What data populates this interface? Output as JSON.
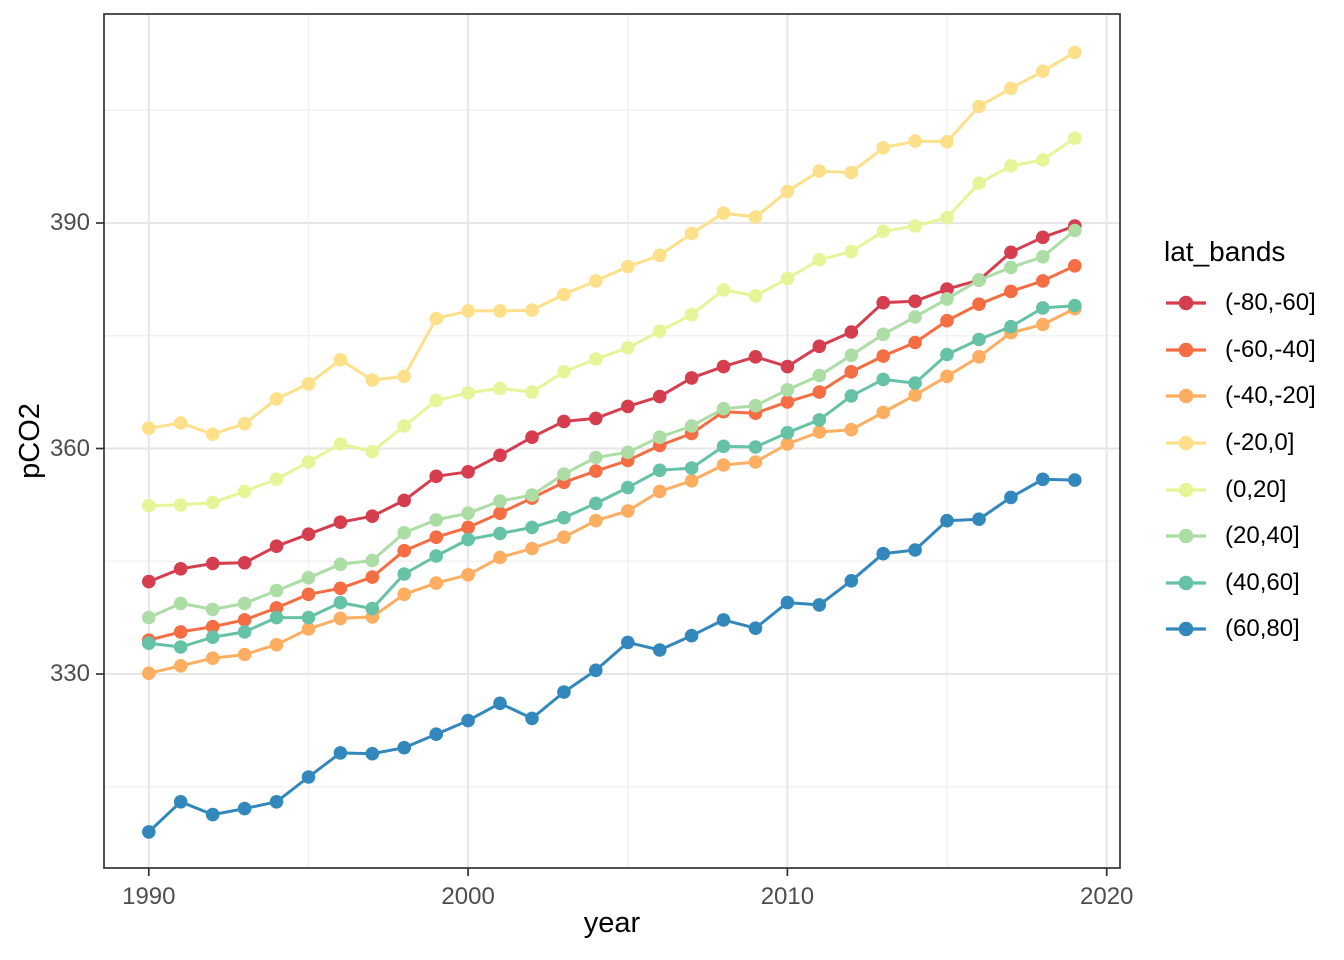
{
  "chart_data": {
    "type": "line",
    "title": "",
    "xlabel": "year",
    "ylabel": "pCO2",
    "legend_title": "lat_bands",
    "legend_position": "right",
    "grid": true,
    "x": [
      1990,
      1991,
      1992,
      1993,
      1994,
      1995,
      1996,
      1997,
      1998,
      1999,
      2000,
      2001,
      2002,
      2003,
      2004,
      2005,
      2006,
      2007,
      2008,
      2009,
      2010,
      2011,
      2012,
      2013,
      2014,
      2015,
      2016,
      2017,
      2018,
      2019
    ],
    "axes": {
      "x_ticks": [
        1990,
        2000,
        2010,
        2020
      ],
      "x_minor": [
        1995,
        2005,
        2015
      ],
      "y_ticks": [
        330,
        360,
        390
      ],
      "y_minor": [
        315,
        345,
        375,
        405
      ],
      "xlim": [
        1988.6,
        2020.4
      ],
      "ylim": [
        304.2,
        417.8
      ]
    },
    "series": [
      {
        "name": "(-80,-60]",
        "color": "#d53e4f",
        "values": [
          342.3,
          344.0,
          344.7,
          344.8,
          347.0,
          348.6,
          350.2,
          351.0,
          353.1,
          356.3,
          356.9,
          359.1,
          361.5,
          363.6,
          364.0,
          365.6,
          366.9,
          369.4,
          370.9,
          372.2,
          370.9,
          373.6,
          375.5,
          379.4,
          379.6,
          381.2,
          382.4,
          386.1,
          388.1,
          389.6
        ]
      },
      {
        "name": "(-60,-40]",
        "color": "#f46d43",
        "values": [
          334.5,
          335.6,
          336.3,
          337.2,
          338.8,
          340.6,
          341.4,
          342.9,
          346.4,
          348.2,
          349.5,
          351.4,
          353.4,
          355.5,
          357.0,
          358.4,
          360.4,
          362.0,
          364.9,
          364.7,
          366.2,
          367.5,
          370.2,
          372.3,
          374.1,
          377.0,
          379.2,
          380.9,
          382.3,
          384.3
        ]
      },
      {
        "name": "(-40,-20]",
        "color": "#fdae61",
        "values": [
          330.1,
          331.1,
          332.1,
          332.6,
          333.9,
          336.0,
          337.4,
          337.6,
          340.6,
          342.1,
          343.2,
          345.5,
          346.7,
          348.2,
          350.4,
          351.7,
          354.3,
          355.7,
          357.8,
          358.2,
          360.6,
          362.2,
          362.5,
          364.8,
          367.1,
          369.6,
          372.2,
          375.4,
          376.5,
          378.6
        ]
      },
      {
        "name": "(-20,0]",
        "color": "#fee08b",
        "values": [
          362.7,
          363.4,
          361.9,
          363.3,
          366.6,
          368.6,
          371.8,
          369.1,
          369.6,
          377.3,
          378.3,
          378.3,
          378.4,
          380.5,
          382.3,
          384.2,
          385.7,
          388.6,
          391.3,
          390.8,
          394.2,
          396.9,
          396.7,
          400.0,
          400.9,
          400.8,
          405.5,
          407.9,
          410.2,
          412.7
        ]
      },
      {
        "name": "(0,20]",
        "color": "#e6f598",
        "values": [
          352.4,
          352.5,
          352.8,
          354.3,
          355.9,
          358.2,
          360.6,
          359.6,
          363.0,
          366.4,
          367.4,
          368.0,
          367.5,
          370.2,
          371.9,
          373.4,
          375.6,
          377.8,
          381.1,
          380.3,
          382.6,
          385.1,
          386.2,
          388.9,
          389.6,
          390.7,
          395.3,
          397.6,
          398.4,
          401.3
        ]
      },
      {
        "name": "(20,40]",
        "color": "#abdda4",
        "values": [
          337.5,
          339.4,
          338.6,
          339.4,
          341.1,
          342.8,
          344.6,
          345.1,
          348.8,
          350.5,
          351.4,
          353.0,
          353.8,
          356.6,
          358.8,
          359.5,
          361.5,
          363.0,
          365.3,
          365.7,
          367.8,
          369.7,
          372.4,
          375.2,
          377.5,
          379.9,
          382.4,
          384.1,
          385.5,
          389.0
        ]
      },
      {
        "name": "(40,60]",
        "color": "#66c2a5",
        "values": [
          334.1,
          333.6,
          334.9,
          335.6,
          337.5,
          337.5,
          339.5,
          338.7,
          343.3,
          345.7,
          347.9,
          348.7,
          349.5,
          350.8,
          352.7,
          354.8,
          357.1,
          357.4,
          360.3,
          360.2,
          362.1,
          363.8,
          367.0,
          369.2,
          368.7,
          372.5,
          374.5,
          376.2,
          378.7,
          379.0
        ]
      },
      {
        "name": "(60,80]",
        "color": "#3288bd",
        "values": [
          309.0,
          313.0,
          311.3,
          312.1,
          313.0,
          316.3,
          319.5,
          319.4,
          320.2,
          322.0,
          323.8,
          326.1,
          324.1,
          327.6,
          330.5,
          334.2,
          333.2,
          335.1,
          337.2,
          336.1,
          339.5,
          339.2,
          342.4,
          346.0,
          346.5,
          350.4,
          350.6,
          353.5,
          355.9,
          355.8
        ]
      }
    ],
    "style": {
      "panel_border_color": "#333333",
      "grid_major_color": "#e6e6e6",
      "grid_minor_color": "#f2f2f2",
      "tick_color": "#333333",
      "tick_label_color": "#4d4d4d"
    }
  }
}
